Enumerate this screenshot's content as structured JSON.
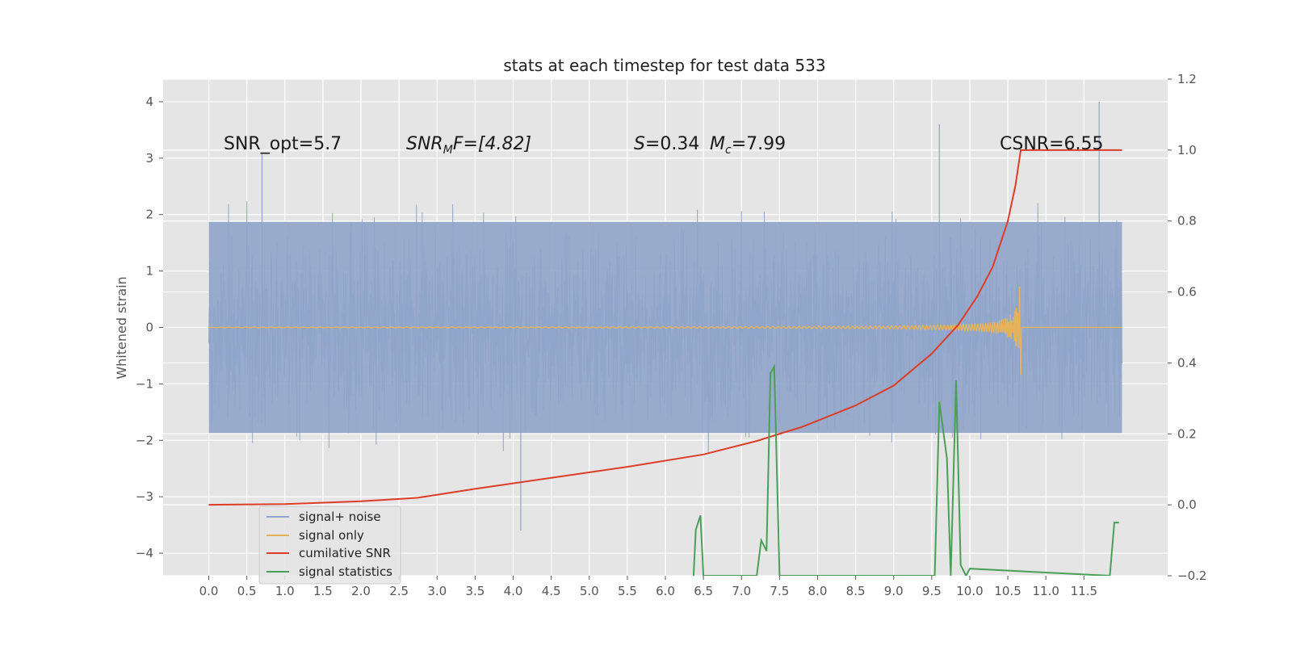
{
  "chart_data": {
    "type": "line",
    "title": "stats at each timestep for test data 533",
    "ylabel": "Whitened strain",
    "xlim": [
      -0.6,
      12.6
    ],
    "ylim": [
      -4.4,
      4.4
    ],
    "y2lim": [
      -0.2,
      1.2
    ],
    "x_ticks": [
      "0.0",
      "0.5",
      "1.0",
      "1.5",
      "2.0",
      "2.5",
      "3.0",
      "3.5",
      "4.0",
      "4.5",
      "5.0",
      "5.5",
      "6.0",
      "6.5",
      "7.0",
      "7.5",
      "8.0",
      "8.5",
      "9.0",
      "9.5",
      "10.0",
      "10.5",
      "11.0",
      "11.5"
    ],
    "y_ticks": [
      "4",
      "3",
      "2",
      "1",
      "0",
      "−1",
      "−2",
      "−3",
      "−4"
    ],
    "y_tick_values": [
      4,
      3,
      2,
      1,
      0,
      -1,
      -2,
      -3,
      -4
    ],
    "y2_ticks": [
      "1.2",
      "1.0",
      "0.8",
      "0.6",
      "0.4",
      "0.2",
      "0.0",
      "−0.2"
    ],
    "y2_tick_values": [
      1.2,
      1.0,
      0.8,
      0.6,
      0.4,
      0.2,
      0.0,
      -0.2
    ],
    "grid": true,
    "legend_position": "lower-left",
    "annotations": {
      "snr_opt": "SNR_opt=5.7",
      "snr_mf_sym": "SNR",
      "snr_mf_sub": "M",
      "snr_mf_rest": "F=[4.82]",
      "s_sym": "S",
      "s_rest": "=0.34",
      "mc_sym": "M",
      "mc_sub": "c",
      "mc_rest": "=7.99",
      "csnr": "CSNR=6.55"
    },
    "noise_band": {
      "x_range": [
        0.0,
        12.0
      ],
      "typical_envelope": [
        -2.2,
        2.2
      ],
      "max_peak": 4.0,
      "min_trough": -3.6
    },
    "series": [
      {
        "name": "signal+ noise",
        "color": "#8fa4c9",
        "axis": "left",
        "description_values": "noise-dominated whitened strain, roughly ±2.5 with peaks near ±3.5"
      },
      {
        "name": "signal only",
        "color": "#e6b35a",
        "axis": "left",
        "chirp": {
          "x_start": 0.0,
          "x_merger": 10.68,
          "x_end": 12.0,
          "peak_amplitude": 0.85
        }
      },
      {
        "name": "cumilative SNR",
        "color": "#dc3d26",
        "axis": "right",
        "x": [
          0.0,
          1.0,
          2.0,
          2.75,
          3.5,
          4.5,
          5.5,
          6.5,
          7.2,
          7.8,
          8.5,
          9.0,
          9.5,
          9.85,
          10.1,
          10.3,
          10.5,
          10.6,
          10.67,
          12.0
        ],
        "y": [
          0.0,
          0.002,
          0.01,
          0.02,
          0.045,
          0.076,
          0.107,
          0.142,
          0.18,
          0.22,
          0.28,
          0.336,
          0.426,
          0.508,
          0.588,
          0.67,
          0.8,
          0.9,
          1.0,
          1.0
        ]
      },
      {
        "name": "signal statistics",
        "color": "#4aa058",
        "axis": "right",
        "x": [
          6.37,
          6.4,
          6.46,
          6.5,
          7.2,
          7.26,
          7.33,
          7.38,
          7.43,
          7.5,
          9.54,
          9.6,
          9.7,
          9.75,
          9.82,
          9.88,
          9.95,
          10.0,
          11.84,
          11.9,
          11.96
        ],
        "y": [
          -0.2,
          -0.07,
          -0.03,
          -0.2,
          -0.2,
          -0.1,
          -0.13,
          0.37,
          0.39,
          -0.2,
          -0.2,
          0.29,
          0.13,
          -0.2,
          0.35,
          -0.17,
          -0.2,
          -0.18,
          -0.2,
          -0.05,
          -0.05
        ]
      }
    ]
  }
}
